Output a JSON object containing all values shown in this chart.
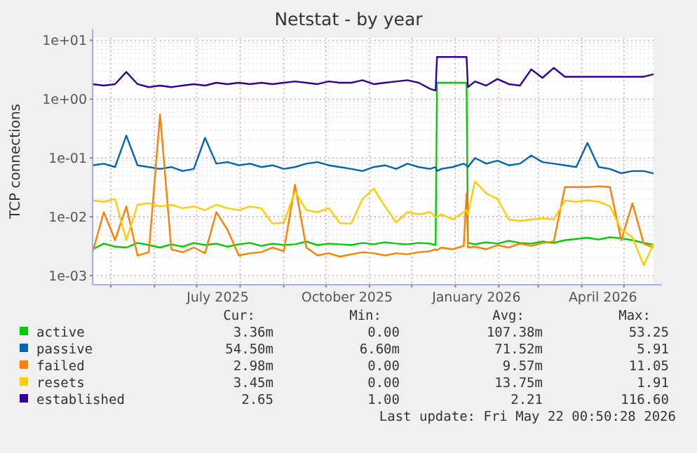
{
  "chart_data": {
    "type": "line",
    "title": "Netstat - by year",
    "ylabel": "TCP connections",
    "log": "y",
    "grid": true,
    "legend": "bottom",
    "xlim": [
      "2025-04-18",
      "2026-05-22"
    ],
    "xticks": [
      {
        "value": "2025-05-01",
        "label": null
      },
      {
        "value": "2025-06-01",
        "label": null
      },
      {
        "value": "2025-07-01",
        "label": null
      },
      {
        "value": "2025-07-16",
        "label": "July 2025"
      },
      {
        "value": "2025-08-01",
        "label": null
      },
      {
        "value": "2025-09-01",
        "label": null
      },
      {
        "value": "2025-10-01",
        "label": null
      },
      {
        "value": "2025-10-16",
        "label": "October 2025"
      },
      {
        "value": "2025-11-01",
        "label": null
      },
      {
        "value": "2025-12-01",
        "label": null
      },
      {
        "value": "2026-01-01",
        "label": null
      },
      {
        "value": "2026-01-16",
        "label": "January 2026"
      },
      {
        "value": "2026-02-01",
        "label": null
      },
      {
        "value": "2026-03-01",
        "label": null
      },
      {
        "value": "2026-04-01",
        "label": null
      },
      {
        "value": "2026-04-16",
        "label": "April 2026"
      },
      {
        "value": "2026-05-01",
        "label": null
      }
    ],
    "ylim": [
      0.0007,
      11
    ],
    "yticks": [
      {
        "value": 0.001,
        "label": "1e-03"
      },
      {
        "value": 0.01,
        "label": "1e-02"
      },
      {
        "value": 0.1,
        "label": "1e-01"
      },
      {
        "value": 1,
        "label": "1e+00"
      },
      {
        "value": 10,
        "label": "1e+01"
      }
    ],
    "x": [
      "2025-04-18",
      "2025-04-26",
      "2025-05-04",
      "2025-05-12",
      "2025-05-20",
      "2025-05-28",
      "2025-06-05",
      "2025-06-13",
      "2025-06-21",
      "2025-06-29",
      "2025-07-07",
      "2025-07-15",
      "2025-07-23",
      "2025-07-31",
      "2025-08-08",
      "2025-08-16",
      "2025-08-24",
      "2025-09-01",
      "2025-09-09",
      "2025-09-17",
      "2025-09-25",
      "2025-10-03",
      "2025-10-11",
      "2025-10-19",
      "2025-10-27",
      "2025-11-04",
      "2025-11-12",
      "2025-11-20",
      "2025-11-28",
      "2025-12-06",
      "2025-12-14",
      "2025-12-18",
      "2025-12-19",
      "2025-12-22",
      "2025-12-30",
      "2026-01-07",
      "2026-01-09",
      "2026-01-10",
      "2026-01-15",
      "2026-01-23",
      "2026-01-31",
      "2026-02-08",
      "2026-02-16",
      "2026-02-24",
      "2026-03-04",
      "2026-03-12",
      "2026-03-20",
      "2026-03-28",
      "2026-04-05",
      "2026-04-13",
      "2026-04-21",
      "2026-04-29",
      "2026-05-07",
      "2026-05-15",
      "2026-05-22"
    ],
    "series": [
      {
        "name": "active",
        "color": "#00cc00",
        "values": [
          0.0028,
          0.0035,
          0.0031,
          0.003,
          0.0036,
          0.0033,
          0.003,
          0.0034,
          0.0031,
          0.0036,
          0.0033,
          0.0035,
          0.0031,
          0.0034,
          0.0036,
          0.0032,
          0.0035,
          0.0033,
          0.0034,
          0.0038,
          0.0033,
          0.0035,
          0.0034,
          0.0033,
          0.0036,
          0.0034,
          0.0037,
          0.0035,
          0.0034,
          0.0036,
          0.0035,
          0.0033,
          1.9,
          1.9,
          1.9,
          1.9,
          1.9,
          0.0036,
          0.0034,
          0.0037,
          0.0035,
          0.0039,
          0.0036,
          0.0035,
          0.0038,
          0.0036,
          0.004,
          0.0042,
          0.0044,
          0.0041,
          0.0045,
          0.0043,
          0.004,
          0.0036,
          0.00336
        ]
      },
      {
        "name": "passive",
        "color": "#0066b3",
        "values": [
          0.075,
          0.08,
          0.07,
          0.24,
          0.075,
          0.07,
          0.065,
          0.07,
          0.06,
          0.065,
          0.22,
          0.08,
          0.085,
          0.075,
          0.08,
          0.07,
          0.075,
          0.065,
          0.07,
          0.08,
          0.085,
          0.075,
          0.07,
          0.065,
          0.06,
          0.07,
          0.075,
          0.065,
          0.08,
          0.07,
          0.065,
          0.07,
          0.06,
          0.065,
          0.07,
          0.08,
          0.075,
          0.07,
          0.1,
          0.08,
          0.09,
          0.075,
          0.08,
          0.11,
          0.085,
          0.08,
          0.075,
          0.07,
          0.18,
          0.07,
          0.065,
          0.055,
          0.06,
          0.06,
          0.0545
        ]
      },
      {
        "name": "failed",
        "color": "#ff8000",
        "values": [
          0.0025,
          0.012,
          0.004,
          0.015,
          0.0022,
          0.0025,
          0.55,
          0.0028,
          0.0025,
          0.003,
          0.0024,
          0.012,
          0.006,
          0.0022,
          0.0024,
          0.0025,
          0.003,
          0.0026,
          0.035,
          0.003,
          0.0022,
          0.0024,
          0.0021,
          0.0023,
          0.0025,
          0.0024,
          0.0022,
          0.0024,
          0.0023,
          0.0025,
          0.0026,
          0.0028,
          0.0027,
          0.003,
          0.0028,
          0.0032,
          0.025,
          0.003,
          0.0031,
          0.0028,
          0.0033,
          0.003,
          0.0035,
          0.0032,
          0.0036,
          0.0038,
          0.032,
          0.032,
          0.032,
          0.033,
          0.032,
          0.004,
          0.017,
          0.0035,
          0.00298
        ]
      },
      {
        "name": "resets",
        "color": "#ffcc00",
        "values": [
          0.019,
          0.018,
          0.02,
          0.004,
          0.016,
          0.017,
          0.015,
          0.016,
          0.014,
          0.015,
          0.013,
          0.016,
          0.014,
          0.013,
          0.015,
          0.014,
          0.0076,
          0.008,
          0.027,
          0.013,
          0.012,
          0.014,
          0.0078,
          0.0076,
          0.02,
          0.03,
          0.015,
          0.008,
          0.012,
          0.011,
          0.012,
          0.01,
          0.01,
          0.011,
          0.009,
          0.012,
          0.013,
          0.011,
          0.04,
          0.025,
          0.02,
          0.009,
          0.0085,
          0.009,
          0.0095,
          0.009,
          0.019,
          0.018,
          0.019,
          0.018,
          0.015,
          0.006,
          0.0045,
          0.0015,
          0.00345
        ]
      },
      {
        "name": "established",
        "color": "#330099",
        "values": [
          1.8,
          1.7,
          1.8,
          2.9,
          1.8,
          1.6,
          1.7,
          1.6,
          1.7,
          1.8,
          1.7,
          1.9,
          1.8,
          1.9,
          1.8,
          1.9,
          1.8,
          1.9,
          2.0,
          1.9,
          1.8,
          2.0,
          1.9,
          1.9,
          2.1,
          1.8,
          1.9,
          2.0,
          2.1,
          1.9,
          1.5,
          1.4,
          5.2,
          5.2,
          5.2,
          5.2,
          5.2,
          1.6,
          2.0,
          1.7,
          2.2,
          1.8,
          1.7,
          3.2,
          2.3,
          3.4,
          2.4,
          2.4,
          2.4,
          2.4,
          2.4,
          2.4,
          2.4,
          2.4,
          2.65
        ]
      }
    ],
    "annotations": [
      "Cur:",
      "Min:",
      "Avg:",
      "Max:",
      "3.36m",
      "0.00",
      "107.38m",
      "53.25",
      "54.50m",
      "6.60m",
      "71.52m",
      "5.91",
      "2.98m",
      "0.00",
      "9.57m",
      "11.05",
      "3.45m",
      "0.00",
      "13.75m",
      "1.91",
      "2.65",
      "1.00",
      "2.21",
      "116.60",
      "Last update: Fri May 22 00:50:28 2026"
    ]
  }
}
